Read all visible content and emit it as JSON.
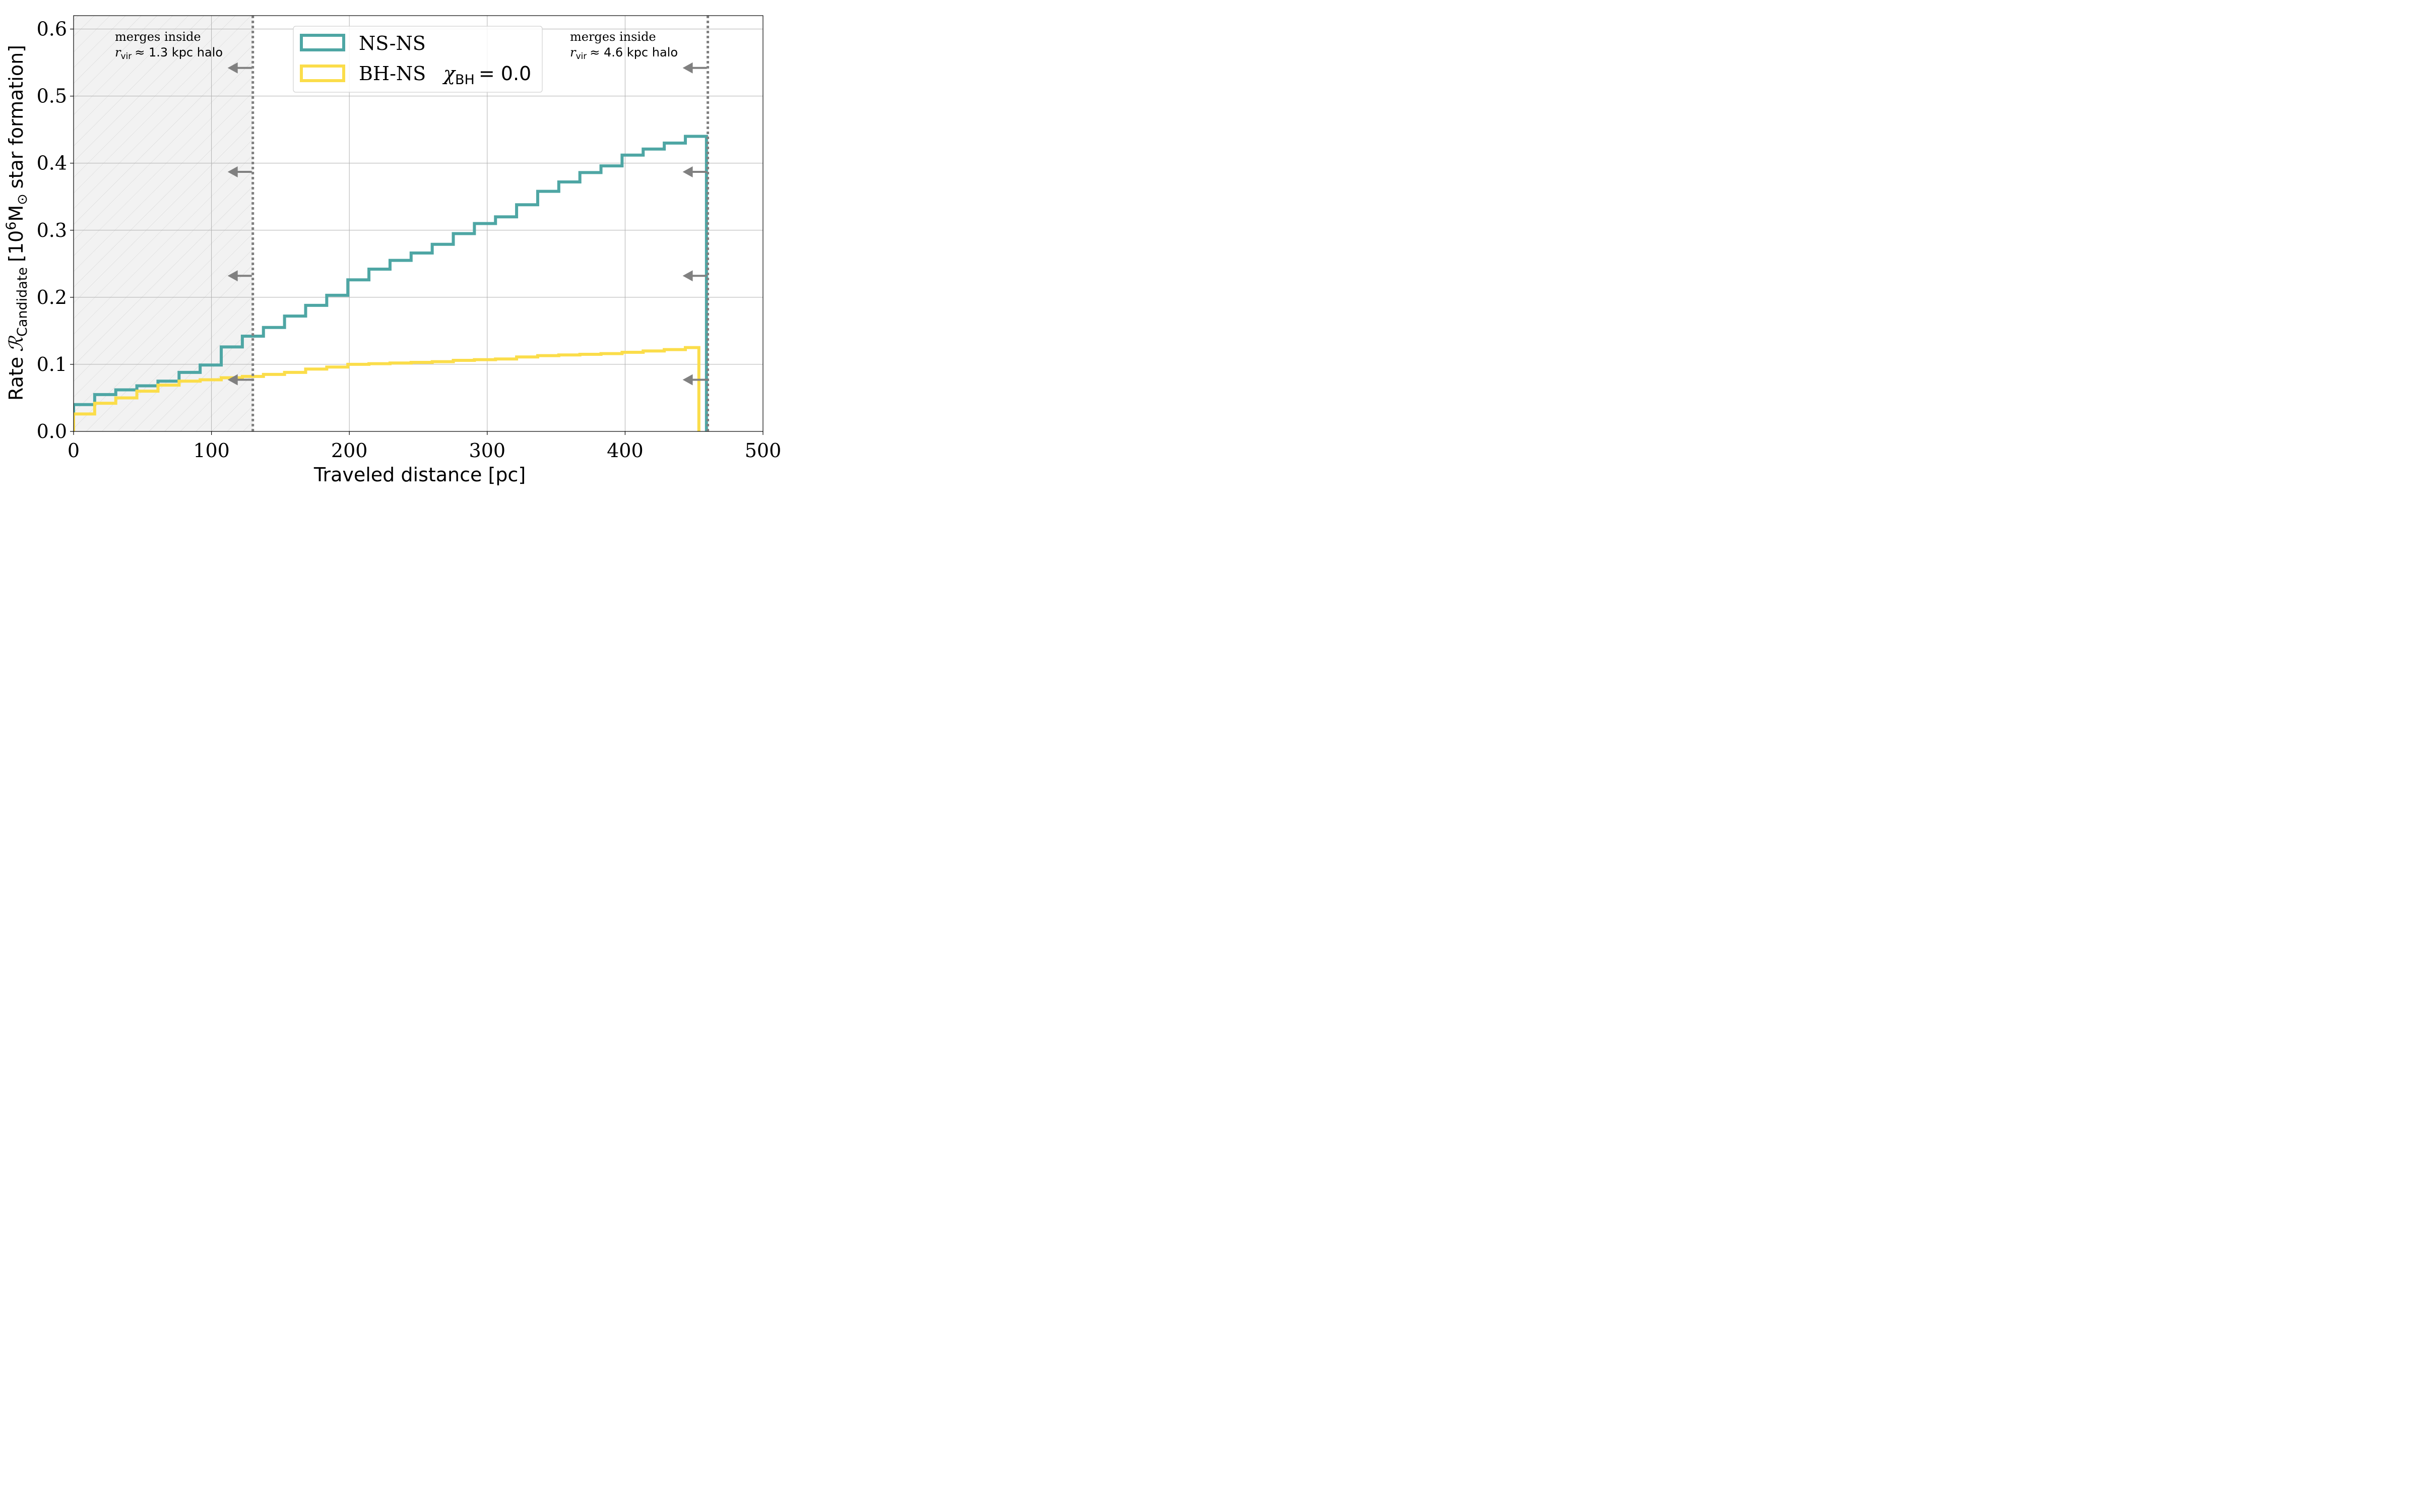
{
  "chart_data": {
    "type": "line",
    "xlabel": "Traveled distance [pc]",
    "ylabel": {
      "prefix": "Rate",
      "symbol": "ℛ",
      "symbol_sub": "Candidate",
      "bracket_open": "[10",
      "power": "6",
      "mass_unit": "M",
      "mass_sub": "⊙",
      "suffix": "star formation]"
    },
    "xlim": [
      0,
      500
    ],
    "ylim": [
      0,
      0.62
    ],
    "xticks": [
      0,
      100,
      200,
      300,
      400,
      500
    ],
    "xtick_labels": [
      "0",
      "100",
      "200",
      "300",
      "400",
      "500"
    ],
    "yticks": [
      0,
      0.1,
      0.2,
      0.3,
      0.4,
      0.5,
      0.6
    ],
    "ytick_labels": [
      "0.0",
      "0.1",
      "0.2",
      "0.3",
      "0.4",
      "0.5",
      "0.6"
    ],
    "grid": true,
    "legend_position": "top-center",
    "bin_edges": [
      0,
      15.3,
      30.6,
      45.9,
      61.2,
      76.5,
      91.8,
      107.1,
      122.4,
      137.7,
      153,
      168.3,
      183.6,
      198.9,
      214.2,
      229.5,
      244.8,
      260.1,
      275.4,
      290.7,
      306,
      321.3,
      336.6,
      351.9,
      367.2,
      382.5,
      397.8,
      413.1,
      428.4,
      443.7,
      459
    ],
    "series": [
      {
        "name": "NS-NS",
        "color": "#4ea6a4",
        "values": [
          0.04,
          0.055,
          0.062,
          0.068,
          0.075,
          0.088,
          0.099,
          0.126,
          0.142,
          0.155,
          0.172,
          0.188,
          0.203,
          0.226,
          0.242,
          0.255,
          0.266,
          0.279,
          0.295,
          0.31,
          0.32,
          0.338,
          0.358,
          0.372,
          0.386,
          0.396,
          0.412,
          0.421,
          0.43,
          0.44
        ]
      },
      {
        "name": "BH-NS",
        "color": "#fbdd4a",
        "bin_edges": [
          0,
          15.3,
          30.6,
          45.9,
          61.2,
          76.5,
          91.8,
          107.1,
          122.4,
          137.7,
          153,
          168.3,
          183.6,
          198.9,
          214.2,
          229.5,
          244.8,
          260.1,
          275.4,
          290.7,
          306,
          321.3,
          336.6,
          351.9,
          367.2,
          382.5,
          397.8,
          413.1,
          428.4,
          443.7,
          453.5
        ],
        "values": [
          0.026,
          0.042,
          0.05,
          0.06,
          0.069,
          0.075,
          0.077,
          0.08,
          0.082,
          0.085,
          0.088,
          0.093,
          0.096,
          0.1,
          0.101,
          0.102,
          0.103,
          0.104,
          0.106,
          0.107,
          0.108,
          0.111,
          0.113,
          0.114,
          0.115,
          0.116,
          0.118,
          0.12,
          0.122,
          0.125
        ]
      }
    ],
    "vertical_lines": [
      {
        "x": 130,
        "color": "#808080",
        "style": "dotted"
      },
      {
        "x": 460,
        "color": "#808080",
        "style": "dotted"
      }
    ],
    "arrow_y_values": [
      0.542,
      0.387,
      0.232,
      0.077
    ],
    "shaded_region": {
      "x0": 0,
      "x1": 130,
      "color": "#f2f2f2",
      "hatch": true
    },
    "annotations": [
      {
        "line1": "merges inside",
        "r_symbol": "r",
        "r_sub": "vir",
        "approx": "≈ 1.3 kpc halo"
      },
      {
        "line1": "merges inside",
        "r_symbol": "r",
        "r_sub": "vir",
        "approx": "≈ 4.6 kpc halo"
      }
    ],
    "legend": {
      "items": [
        {
          "label": "NS-NS",
          "color": "#4ea6a4"
        },
        {
          "label": "BH-NS",
          "color": "#fbdd4a",
          "extra_symbol": "χ",
          "extra_sub": "BH",
          "extra_value": "= 0.0"
        }
      ]
    }
  }
}
